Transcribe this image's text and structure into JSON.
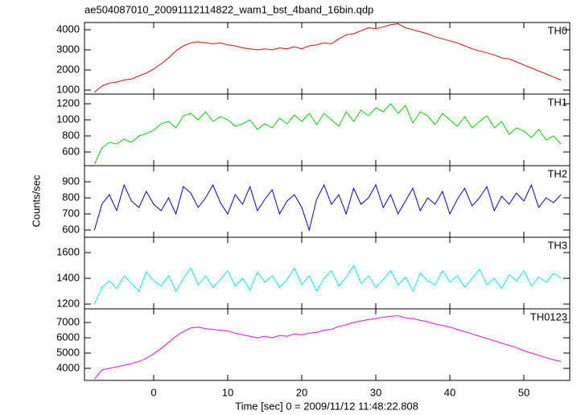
{
  "chart_data": {
    "type": "line",
    "title": "ae504087010_20091112114822_wam1_bst_4band_16bin.qdp",
    "xlabel": "Time [sec] 0 = 2009/11/12 11:48:22.808",
    "ylabel": "Counts/sec",
    "xlim": [
      -9.35,
      56.2
    ],
    "xticks": [
      0,
      10,
      20,
      30,
      40,
      50
    ],
    "x": [
      -8,
      -7,
      -6,
      -5,
      -4,
      -3,
      -2,
      -1,
      0,
      1,
      2,
      3,
      4,
      5,
      6,
      7,
      8,
      9,
      10,
      11,
      12,
      13,
      14,
      15,
      16,
      17,
      18,
      19,
      20,
      21,
      22,
      23,
      24,
      25,
      26,
      27,
      28,
      29,
      30,
      31,
      32,
      33,
      34,
      35,
      36,
      37,
      38,
      39,
      40,
      41,
      42,
      43,
      44,
      45,
      46,
      47,
      48,
      49,
      50,
      51,
      52,
      53,
      54,
      55
    ],
    "series": [
      {
        "name": "TH0",
        "color": "#ff0000",
        "ylim": [
          800,
          4360
        ],
        "yticks": [
          1000,
          2000,
          3000,
          4000
        ],
        "values": [
          900,
          1200,
          1350,
          1400,
          1500,
          1550,
          1700,
          1850,
          2050,
          2300,
          2600,
          2950,
          3200,
          3350,
          3400,
          3350,
          3300,
          3350,
          3250,
          3200,
          3100,
          3050,
          3000,
          3050,
          3000,
          3100,
          3050,
          3150,
          3050,
          3200,
          3250,
          3350,
          3300,
          3550,
          3750,
          3800,
          3950,
          4100,
          4050,
          4150,
          4250,
          4300,
          4100,
          4000,
          3900,
          3800,
          3650,
          3550,
          3450,
          3350,
          3200,
          3050,
          2950,
          2850,
          2750,
          2600,
          2550,
          2400,
          2250,
          2100,
          1950,
          1800,
          1650,
          1500
        ]
      },
      {
        "name": "TH1",
        "color": "#00e000",
        "ylim": [
          430,
          1320
        ],
        "yticks": [
          600,
          800,
          1000,
          1200
        ],
        "values": [
          450,
          650,
          720,
          700,
          760,
          720,
          800,
          830,
          870,
          950,
          980,
          900,
          1050,
          1080,
          1000,
          1100,
          980,
          1040,
          1000,
          920,
          950,
          1000,
          880,
          950,
          900,
          1020,
          950,
          1060,
          980,
          1080,
          940,
          1080,
          1000,
          920,
          1100,
          980,
          1120,
          1050,
          1150,
          1100,
          1200,
          1080,
          1180,
          960,
          1100,
          1050,
          940,
          1080,
          1000,
          920,
          1040,
          900,
          980,
          1050,
          900,
          980,
          820,
          900,
          860,
          780,
          880,
          750,
          800,
          700
        ]
      },
      {
        "name": "TH2",
        "color": "#0000e0",
        "ylim": [
          555,
          1000
        ],
        "yticks": [
          600,
          700,
          800,
          900
        ],
        "values": [
          600,
          760,
          820,
          720,
          880,
          780,
          740,
          840,
          760,
          720,
          800,
          700,
          870,
          830,
          740,
          800,
          880,
          770,
          700,
          820,
          760,
          870,
          720,
          790,
          850,
          700,
          780,
          820,
          740,
          600,
          790,
          880,
          760,
          820,
          700,
          860,
          760,
          800,
          880,
          740,
          820,
          700,
          780,
          860,
          720,
          800,
          760,
          840,
          700,
          790,
          860,
          750,
          800,
          870,
          720,
          810,
          760,
          830,
          780,
          880,
          740,
          800,
          770,
          820
        ]
      },
      {
        "name": "TH3",
        "color": "#00ffff",
        "ylim": [
          1163,
          1719
        ],
        "yticks": [
          1200,
          1400,
          1600
        ],
        "values": [
          1200,
          1330,
          1380,
          1320,
          1420,
          1360,
          1300,
          1450,
          1380,
          1340,
          1420,
          1300,
          1400,
          1480,
          1350,
          1420,
          1330,
          1390,
          1460,
          1340,
          1400,
          1310,
          1450,
          1370,
          1420,
          1330,
          1390,
          1480,
          1350,
          1420,
          1300,
          1400,
          1460,
          1340,
          1410,
          1500,
          1360,
          1420,
          1330,
          1390,
          1460,
          1350,
          1410,
          1300,
          1440,
          1380,
          1350,
          1460,
          1370,
          1420,
          1330,
          1400,
          1470,
          1350,
          1400,
          1320,
          1430,
          1380,
          1460,
          1340,
          1410,
          1370,
          1440,
          1400
        ]
      },
      {
        "name": "TH0123",
        "color": "#ff00ff",
        "ylim": [
          3210,
          7895
        ],
        "yticks": [
          4000,
          5000,
          6000,
          7000
        ],
        "values": [
          3300,
          3900,
          4000,
          4100,
          4200,
          4300,
          4450,
          4650,
          4950,
          5300,
          5700,
          6100,
          6400,
          6650,
          6700,
          6600,
          6550,
          6500,
          6450,
          6300,
          6200,
          6100,
          6000,
          6100,
          6000,
          6150,
          6100,
          6250,
          6200,
          6300,
          6350,
          6500,
          6550,
          6750,
          6850,
          7000,
          7100,
          7200,
          7250,
          7350,
          7400,
          7450,
          7300,
          7250,
          7150,
          7050,
          6900,
          6800,
          6700,
          6550,
          6400,
          6250,
          6100,
          5950,
          5800,
          5650,
          5500,
          5350,
          5150,
          5000,
          4850,
          4700,
          4550,
          4450
        ]
      }
    ]
  }
}
